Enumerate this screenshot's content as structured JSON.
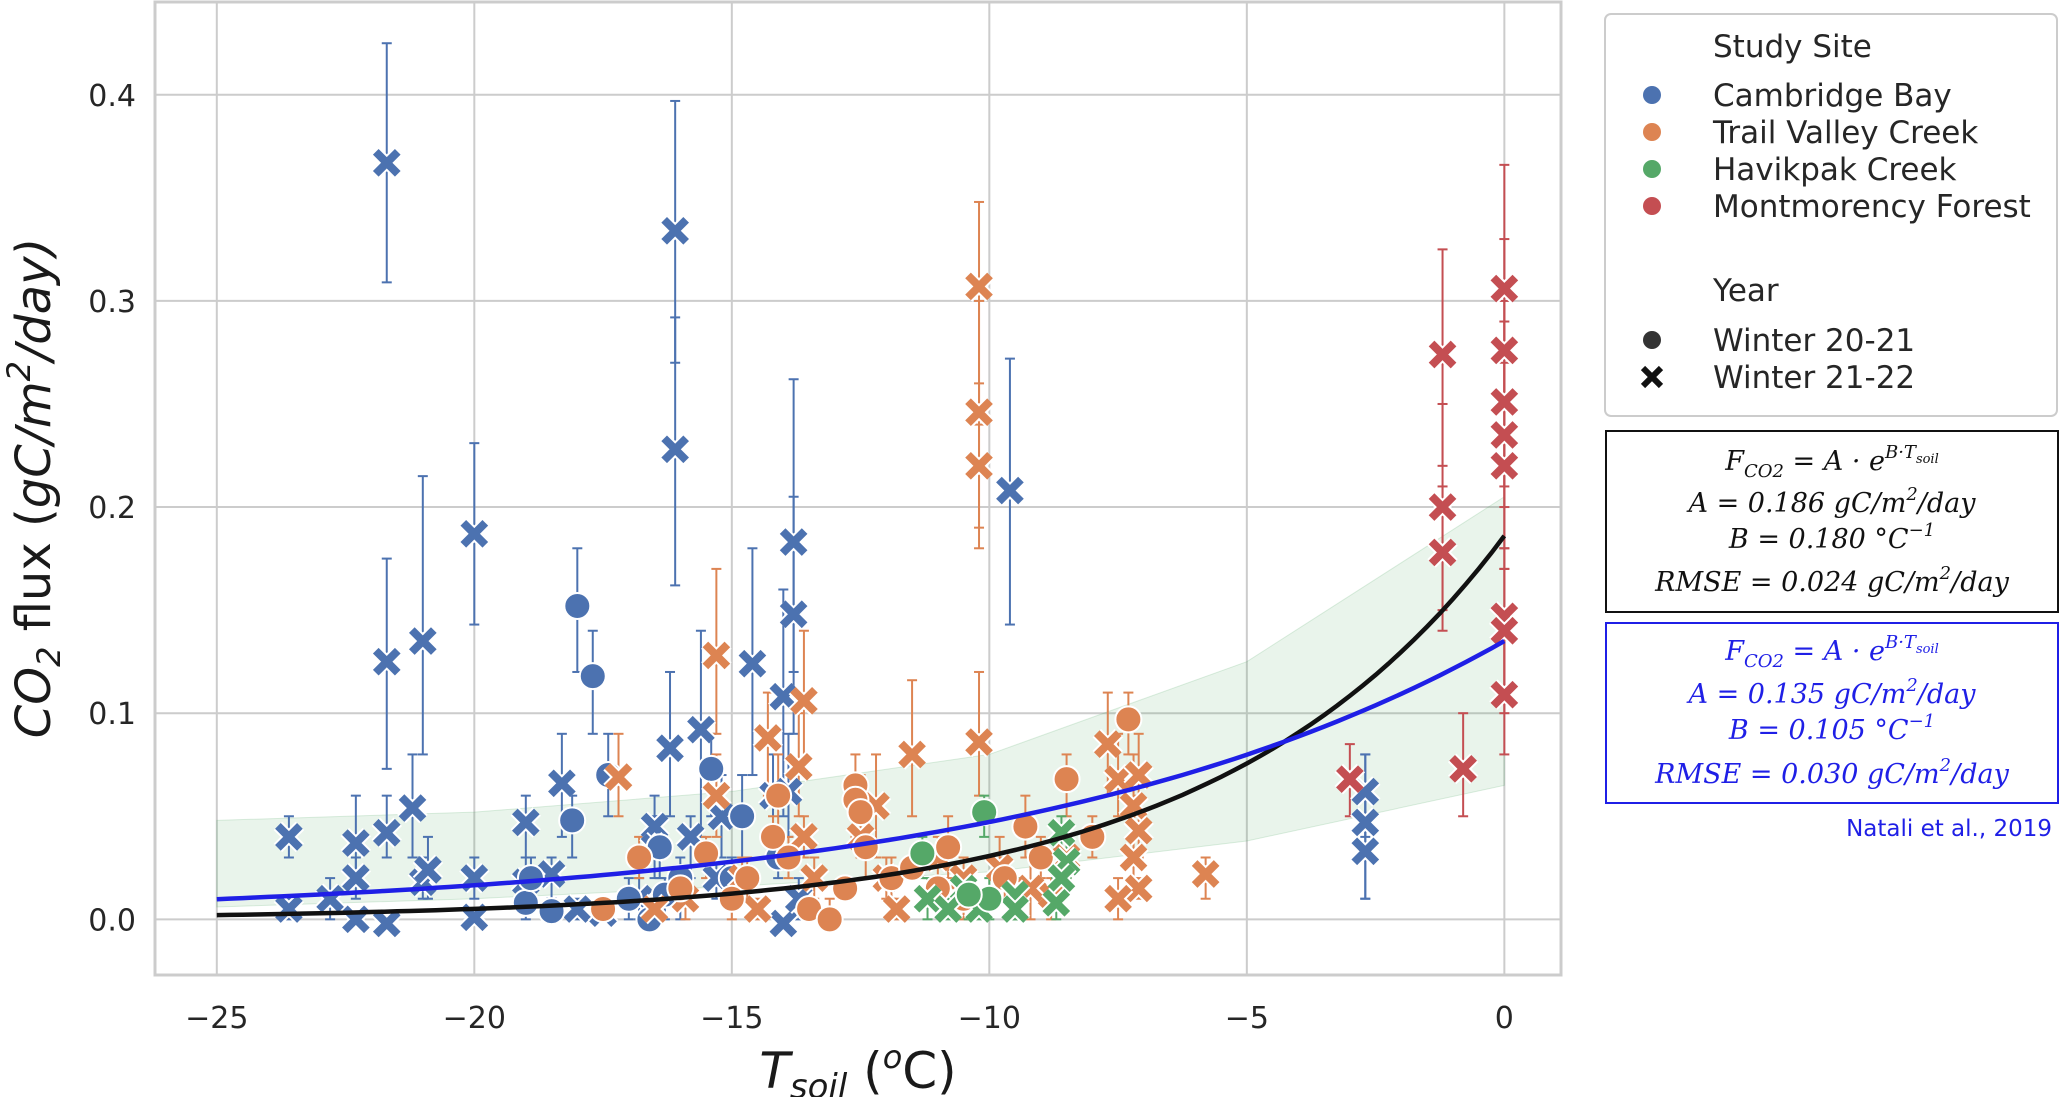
{
  "chart_data": {
    "type": "scatter",
    "xlabel_main": "T",
    "xlabel_sub": "soil",
    "xlabel_unit_open": " (",
    "xlabel_unit_sup": "o",
    "xlabel_unit_close": "C)",
    "ylabel_base": "CO",
    "ylabel_sub": "2",
    "ylabel_mid": " flux (",
    "ylabel_unit": "gC/m",
    "ylabel_sup": "2",
    "ylabel_end": "/day)",
    "xlim": [
      -26.2,
      1.1
    ],
    "ylim": [
      -0.027,
      0.445
    ],
    "x_ticks": [
      -25,
      -20,
      -15,
      -10,
      -5,
      0
    ],
    "x_tick_labels": [
      "−25",
      "−20",
      "−15",
      "−10",
      "−5",
      "0"
    ],
    "y_ticks": [
      0.0,
      0.1,
      0.2,
      0.3,
      0.4
    ],
    "y_tick_labels": [
      "0.0",
      "0.1",
      "0.2",
      "0.3",
      "0.4"
    ],
    "grid": true,
    "legend_position": "outside-right",
    "legend": {
      "site_title": "Study Site",
      "sites": [
        {
          "name": "Cambridge Bay",
          "color": "#4c72b0"
        },
        {
          "name": "Trail Valley Creek",
          "color": "#dd8452"
        },
        {
          "name": "Havikpak Creek",
          "color": "#55a868"
        },
        {
          "name": "Montmorency Forest",
          "color": "#c44e52"
        }
      ],
      "year_title": "Year",
      "years": [
        {
          "name": "Winter 20-21",
          "marker": "circle"
        },
        {
          "name": "Winter 21-22",
          "marker": "x"
        }
      ]
    },
    "fits": [
      {
        "color": "#111111",
        "A": 0.186,
        "B": 0.18,
        "eq_lines": [
          "F_CO2 = A · e^(B·T_soil)",
          "A = 0.186 gC/m²/day",
          "B = 0.180 °C⁻¹",
          "RMSE = 0.024 gC/m²/day"
        ],
        "A_value": "0.186",
        "B_value": "0.180",
        "RMSE_value": "0.024"
      },
      {
        "color": "#1f1fe6",
        "A": 0.135,
        "B": 0.105,
        "A_value": "0.135",
        "B_value": "0.105",
        "RMSE_value": "0.030",
        "citation": "Natali et al., 2019"
      }
    ],
    "band": {
      "color": "#55a868",
      "lower": [
        [
          -25,
          0.006
        ],
        [
          -20,
          0.01
        ],
        [
          -15,
          0.016
        ],
        [
          -10,
          0.023
        ],
        [
          -5,
          0.038
        ],
        [
          0,
          0.065
        ]
      ],
      "upper": [
        [
          -25,
          0.048
        ],
        [
          -20,
          0.052
        ],
        [
          -15,
          0.062
        ],
        [
          -10,
          0.08
        ],
        [
          -5,
          0.125
        ],
        [
          0,
          0.205
        ]
      ]
    },
    "series": [
      {
        "site": "Cambridge Bay",
        "year": "Winter 21-22",
        "points": [
          [
            -21.7,
            0.367,
            0.309,
            0.425
          ],
          [
            -16.1,
            0.334,
            0.27,
            0.397
          ],
          [
            -16.1,
            0.228,
            0.162,
            0.292
          ],
          [
            -13.8,
            0.183,
            0.12,
            0.262
          ],
          [
            -20.0,
            0.187,
            0.143,
            0.231
          ],
          [
            -9.6,
            0.208,
            0.143,
            0.272
          ],
          [
            -13.8,
            0.148,
            0.09,
            0.205
          ],
          [
            -21.7,
            0.125,
            0.073,
            0.175
          ],
          [
            -21.0,
            0.135,
            0.08,
            0.215
          ],
          [
            -14.6,
            0.124,
            0.07,
            0.18
          ],
          [
            -14.0,
            0.108,
            0.05,
            0.16
          ],
          [
            -15.6,
            0.092,
            0.04,
            0.14
          ],
          [
            -16.2,
            0.083,
            0.05,
            0.12
          ],
          [
            -18.3,
            0.066,
            0.04,
            0.09
          ],
          [
            -21.2,
            0.054,
            0.03,
            0.08
          ],
          [
            -22.3,
            0.037,
            0.02,
            0.06
          ],
          [
            -23.6,
            0.04,
            0.03,
            0.05
          ],
          [
            -21.7,
            0.042,
            0.03,
            0.06
          ],
          [
            -19.0,
            0.047,
            0.03,
            0.06
          ],
          [
            -16.5,
            0.045,
            0.03,
            0.06
          ],
          [
            -15.2,
            0.05,
            0.03,
            0.07
          ],
          [
            -14.2,
            0.06,
            0.04,
            0.08
          ],
          [
            -13.9,
            0.062,
            0.04,
            0.09
          ],
          [
            -2.7,
            0.047,
            0.01,
            0.08
          ],
          [
            -2.7,
            0.033,
            0.01,
            0.06
          ],
          [
            -2.7,
            0.062,
            0.04,
            0.08
          ],
          [
            -23.6,
            0.005,
            0.0,
            0.01
          ],
          [
            -22.3,
            0.02,
            0.01,
            0.03
          ],
          [
            -22.3,
            0.0,
            0.0,
            0.0
          ],
          [
            -21.7,
            -0.002,
            0.0,
            0.0
          ],
          [
            -21.0,
            0.018,
            0.01,
            0.03
          ],
          [
            -20.9,
            0.024,
            0.01,
            0.04
          ],
          [
            -20.0,
            0.02,
            0.01,
            0.03
          ],
          [
            -20.0,
            0.001,
            0.0,
            0.0
          ],
          [
            -19.0,
            0.018,
            0.01,
            0.03
          ],
          [
            -18.5,
            0.022,
            0.01,
            0.03
          ],
          [
            -18.0,
            0.005,
            0.0,
            0.01
          ],
          [
            -17.5,
            0.003,
            0.0,
            0.0
          ],
          [
            -16.8,
            0.01,
            0.0,
            0.02
          ],
          [
            -16.5,
            0.035,
            0.02,
            0.05
          ],
          [
            -15.8,
            0.04,
            0.02,
            0.05
          ],
          [
            -15.3,
            0.02,
            0.01,
            0.03
          ],
          [
            -14.0,
            -0.002,
            0.0,
            0.0
          ],
          [
            -13.7,
            0.01,
            0.0,
            0.02
          ],
          [
            -22.8,
            0.01,
            0.0,
            0.02
          ]
        ]
      },
      {
        "site": "Cambridge Bay",
        "year": "Winter 20-21",
        "points": [
          [
            -18.0,
            0.152,
            0.12,
            0.18
          ],
          [
            -17.7,
            0.118,
            0.09,
            0.14
          ],
          [
            -15.4,
            0.073,
            0.05,
            0.09
          ],
          [
            -18.1,
            0.048,
            0.03,
            0.06
          ],
          [
            -17.4,
            0.07,
            0.05,
            0.09
          ],
          [
            -16.4,
            0.035,
            0.02,
            0.05
          ],
          [
            -14.8,
            0.05,
            0.03,
            0.07
          ],
          [
            -16.0,
            0.02,
            0.0,
            0.03
          ],
          [
            -16.6,
            0.0,
            0.0,
            0.01
          ],
          [
            -17.0,
            0.01,
            0.0,
            0.02
          ],
          [
            -18.5,
            0.004,
            0.0,
            0.01
          ],
          [
            -19.0,
            0.008,
            0.0,
            0.02
          ],
          [
            -18.9,
            0.02,
            0.01,
            0.03
          ],
          [
            -16.3,
            0.012,
            0.0,
            0.02
          ],
          [
            -15.0,
            0.02,
            0.01,
            0.03
          ],
          [
            -14.1,
            0.03,
            0.02,
            0.04
          ]
        ]
      },
      {
        "site": "Trail Valley Creek",
        "year": "Winter 21-22",
        "points": [
          [
            -10.2,
            0.307,
            0.24,
            0.348
          ],
          [
            -10.2,
            0.246,
            0.19,
            0.3
          ],
          [
            -10.2,
            0.22,
            0.18,
            0.26
          ],
          [
            -15.3,
            0.128,
            0.09,
            0.17
          ],
          [
            -13.6,
            0.106,
            0.07,
            0.14
          ],
          [
            -11.5,
            0.08,
            0.05,
            0.116
          ],
          [
            -10.2,
            0.086,
            0.06,
            0.12
          ],
          [
            -13.7,
            0.074,
            0.05,
            0.1
          ],
          [
            -14.3,
            0.088,
            0.06,
            0.11
          ],
          [
            -17.2,
            0.069,
            0.05,
            0.09
          ],
          [
            -12.2,
            0.055,
            0.03,
            0.08
          ],
          [
            -7.5,
            0.068,
            0.05,
            0.09
          ],
          [
            -7.1,
            0.07,
            0.05,
            0.09
          ],
          [
            -7.2,
            0.055,
            0.03,
            0.08
          ],
          [
            -7.1,
            0.043,
            0.03,
            0.06
          ],
          [
            -7.2,
            0.03,
            0.02,
            0.04
          ],
          [
            -7.1,
            0.015,
            0.01,
            0.02
          ],
          [
            -7.5,
            0.01,
            0.0,
            0.02
          ],
          [
            -8.5,
            0.03,
            0.02,
            0.04
          ],
          [
            -8.8,
            0.012,
            0.0,
            0.02
          ],
          [
            -7.7,
            0.085,
            0.06,
            0.11
          ],
          [
            -5.8,
            0.022,
            0.01,
            0.03
          ],
          [
            -15.3,
            0.06,
            0.04,
            0.08
          ],
          [
            -13.6,
            0.04,
            0.03,
            0.05
          ],
          [
            -13.4,
            0.02,
            0.01,
            0.03
          ],
          [
            -12.5,
            0.04,
            0.03,
            0.05
          ],
          [
            -12.0,
            0.02,
            0.01,
            0.03
          ],
          [
            -11.8,
            0.005,
            0.0,
            0.01
          ],
          [
            -11.0,
            0.03,
            0.02,
            0.04
          ],
          [
            -10.5,
            0.02,
            0.01,
            0.03
          ],
          [
            -9.8,
            0.025,
            0.01,
            0.04
          ],
          [
            -9.2,
            0.015,
            0.0,
            0.03
          ],
          [
            -14.8,
            0.02,
            0.01,
            0.03
          ],
          [
            -14.5,
            0.005,
            0.0,
            0.01
          ],
          [
            -15.9,
            0.01,
            0.0,
            0.02
          ],
          [
            -16.5,
            0.005,
            0.0,
            0.01
          ]
        ]
      },
      {
        "site": "Trail Valley Creek",
        "year": "Winter 20-21",
        "points": [
          [
            -14.1,
            0.06,
            0.04,
            0.08
          ],
          [
            -12.6,
            0.065,
            0.05,
            0.08
          ],
          [
            -12.6,
            0.058,
            0.04,
            0.07
          ],
          [
            -12.5,
            0.052,
            0.04,
            0.07
          ],
          [
            -7.3,
            0.097,
            0.08,
            0.11
          ],
          [
            -8.5,
            0.068,
            0.05,
            0.08
          ],
          [
            -15.5,
            0.032,
            0.02,
            0.04
          ],
          [
            -13.9,
            0.03,
            0.02,
            0.04
          ],
          [
            -12.4,
            0.035,
            0.02,
            0.05
          ],
          [
            -16.8,
            0.03,
            0.02,
            0.04
          ],
          [
            -11.9,
            0.02,
            0.01,
            0.03
          ],
          [
            -11.0,
            0.015,
            0.01,
            0.02
          ],
          [
            -10.5,
            0.01,
            0.0,
            0.02
          ],
          [
            -9.7,
            0.02,
            0.01,
            0.03
          ],
          [
            -9.0,
            0.03,
            0.02,
            0.04
          ],
          [
            -14.7,
            0.02,
            0.01,
            0.03
          ],
          [
            -13.5,
            0.005,
            0.0,
            0.01
          ],
          [
            -12.8,
            0.015,
            0.01,
            0.02
          ],
          [
            -16.0,
            0.015,
            0.01,
            0.02
          ],
          [
            -15.0,
            0.01,
            0.0,
            0.02
          ],
          [
            -13.1,
            0.0,
            0.0,
            0.01
          ],
          [
            -17.5,
            0.005,
            0.0,
            0.01
          ],
          [
            -14.2,
            0.04,
            0.03,
            0.05
          ],
          [
            -11.5,
            0.025,
            0.02,
            0.03
          ],
          [
            -10.8,
            0.035,
            0.02,
            0.05
          ],
          [
            -8.0,
            0.04,
            0.03,
            0.05
          ],
          [
            -9.3,
            0.045,
            0.03,
            0.06
          ]
        ]
      },
      {
        "site": "Havikpak Creek",
        "year": "Winter 21-22",
        "points": [
          [
            -8.6,
            0.042,
            0.03,
            0.05
          ],
          [
            -8.5,
            0.028,
            0.02,
            0.04
          ],
          [
            -8.6,
            0.02,
            0.01,
            0.03
          ],
          [
            -8.7,
            0.008,
            0.0,
            0.02
          ],
          [
            -9.5,
            0.012,
            0.0,
            0.02
          ],
          [
            -9.5,
            0.005,
            0.0,
            0.01
          ],
          [
            -10.2,
            0.005,
            0.0,
            0.01
          ],
          [
            -10.5,
            0.015,
            0.01,
            0.02
          ],
          [
            -11.2,
            0.01,
            0.0,
            0.02
          ],
          [
            -10.8,
            0.005,
            0.0,
            0.01
          ]
        ]
      },
      {
        "site": "Havikpak Creek",
        "year": "Winter 20-21",
        "points": [
          [
            -11.3,
            0.032,
            0.02,
            0.04
          ],
          [
            -10.1,
            0.052,
            0.04,
            0.06
          ],
          [
            -10.0,
            0.01,
            0.0,
            0.02
          ],
          [
            -10.4,
            0.012,
            0.0,
            0.02
          ]
        ]
      },
      {
        "site": "Montmorency Forest",
        "year": "Winter 21-22",
        "points": [
          [
            0.0,
            0.306,
            0.25,
            0.366
          ],
          [
            0.0,
            0.276,
            0.21,
            0.33
          ],
          [
            0.0,
            0.251,
            0.2,
            0.3
          ],
          [
            0.0,
            0.235,
            0.18,
            0.29
          ],
          [
            0.0,
            0.22,
            0.17,
            0.27
          ],
          [
            -1.2,
            0.274,
            0.22,
            0.325
          ],
          [
            -1.2,
            0.2,
            0.15,
            0.25
          ],
          [
            -1.2,
            0.178,
            0.14,
            0.21
          ],
          [
            0.0,
            0.147,
            0.11,
            0.18
          ],
          [
            0.0,
            0.14,
            0.1,
            0.17
          ],
          [
            0.0,
            0.109,
            0.08,
            0.14
          ],
          [
            -0.8,
            0.073,
            0.05,
            0.1
          ],
          [
            -3.0,
            0.068,
            0.05,
            0.085
          ]
        ]
      }
    ]
  },
  "equation_box_black": {
    "line1_lhs": "F",
    "line1_lhs_sub": "CO2",
    "line1_rhs": " = A · e",
    "line1_sup": "B·T",
    "line1_sup_sub": "soil",
    "line2": "A = 0.186 gC/m",
    "line2_sup": "2",
    "line2_end": "/day",
    "line3": "B = 0.180 °C",
    "line3_sup": "−1",
    "line4": "RMSE = 0.024 gC/m",
    "line4_sup": "2",
    "line4_end": "/day"
  },
  "equation_box_blue": {
    "line1_lhs": "F",
    "line1_lhs_sub": "CO2",
    "line1_rhs": " = A · e",
    "line1_sup": "B·T",
    "line1_sup_sub": "soil",
    "line2": "A = 0.135 gC/m",
    "line2_sup": "2",
    "line2_end": "/day",
    "line3": "B = 0.105 °C",
    "line3_sup": "−1",
    "line4": "RMSE = 0.030 gC/m",
    "line4_sup": "2",
    "line4_end": "/day",
    "citation": "Natali et al., 2019"
  }
}
